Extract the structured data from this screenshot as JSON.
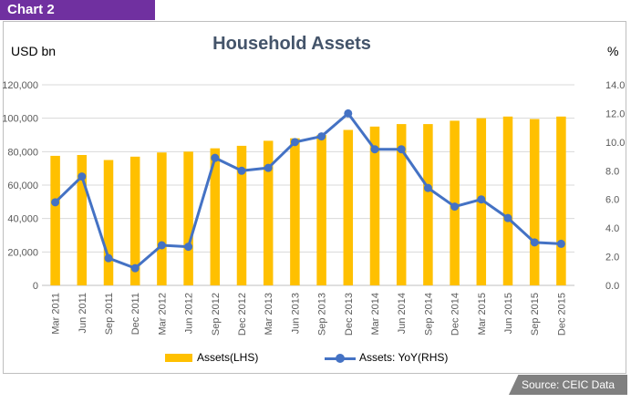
{
  "tag": "Chart 2",
  "source": "Source: CEIC Data",
  "chart_data": {
    "type": "bar",
    "title": "Household Assets",
    "ylabel": "USD bn",
    "y2label": "%",
    "categories": [
      "Mar 2011",
      "Jun 2011",
      "Sep 2011",
      "Dec 2011",
      "Mar 2012",
      "Jun 2012",
      "Sep 2012",
      "Dec 2012",
      "Mar 2013",
      "Jun 2013",
      "Sep 2013",
      "Dec 2013",
      "Mar 2014",
      "Jun 2014",
      "Sep 2014",
      "Dec 2014",
      "Mar 2015",
      "Jun 2015",
      "Sep 2015",
      "Dec 2015"
    ],
    "ylim": [
      0,
      120000
    ],
    "y2lim": [
      0,
      14
    ],
    "yticks": [
      "0",
      "20,000",
      "40,000",
      "60,000",
      "80,000",
      "100,000",
      "120,000"
    ],
    "y2ticks": [
      "0.0",
      "2.0",
      "4.0",
      "6.0",
      "8.0",
      "10.0",
      "12.0",
      "14.0"
    ],
    "grid": true,
    "legend_position": "bottom",
    "series": [
      {
        "name": "Assets(LHS)",
        "type": "bar",
        "axis": "left",
        "color": "#ffc000",
        "values": [
          77500,
          78000,
          75000,
          77000,
          79500,
          80000,
          82000,
          83500,
          86500,
          88000,
          90000,
          93000,
          95000,
          96500,
          96500,
          98500,
          100000,
          101000,
          99500,
          101000
        ]
      },
      {
        "name": "Assets: YoY(RHS)",
        "type": "line",
        "axis": "right",
        "color": "#4472c4",
        "values": [
          5.8,
          7.6,
          1.9,
          1.2,
          2.8,
          2.7,
          8.9,
          8.0,
          8.2,
          10.0,
          10.4,
          12.0,
          9.5,
          9.5,
          6.8,
          5.5,
          6.0,
          4.7,
          3.0,
          2.9
        ]
      }
    ]
  }
}
